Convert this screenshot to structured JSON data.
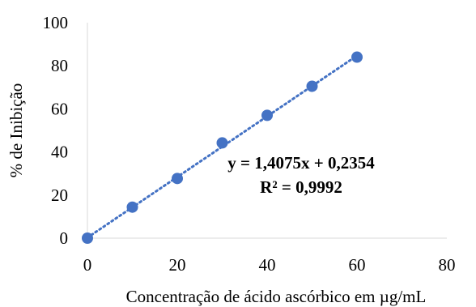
{
  "chart_data": {
    "type": "scatter",
    "title": "",
    "xlabel": "Concentração de ácido ascórbico em µg/mL",
    "ylabel": "% de Inibição",
    "xlim": [
      0,
      80
    ],
    "ylim": [
      0,
      100
    ],
    "x_ticks": [
      "0",
      "20",
      "40",
      "60",
      "80"
    ],
    "y_ticks": [
      "0",
      "20",
      "40",
      "60",
      "80",
      "100"
    ],
    "series": [
      {
        "x": [
          0,
          10,
          20,
          30,
          40,
          50,
          60
        ],
        "y": [
          0,
          14.4,
          27.7,
          44.2,
          57,
          70.5,
          84
        ],
        "color": "#4472C4"
      }
    ],
    "trendline": {
      "type": "linear",
      "style": "dotted",
      "slope": 1.4075,
      "intercept": 0.2354,
      "x_range": [
        0,
        60
      ],
      "color": "#4472C4"
    },
    "annotations": {
      "equation": "y = 1,4075x + 0,2354",
      "r_squared": "R² = 0,9992"
    },
    "grid": false,
    "legend": "none"
  }
}
